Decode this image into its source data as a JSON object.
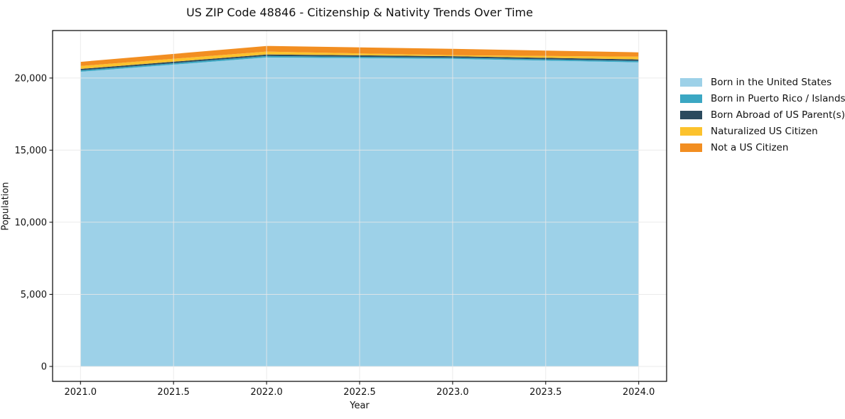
{
  "chart_data": {
    "type": "area",
    "stacked": true,
    "title": "US ZIP Code 48846 - Citizenship & Nativity Trends Over Time",
    "xlabel": "Year",
    "ylabel": "Population",
    "x": [
      2021,
      2022,
      2023,
      2024
    ],
    "series": [
      {
        "name": "Born in the United States",
        "color": "#9dd1e8",
        "values": [
          20440,
          21430,
          21330,
          21090
        ]
      },
      {
        "name": "Born in Puerto Rico / Islands",
        "color": "#3ba7c3",
        "values": [
          95,
          100,
          85,
          95
        ]
      },
      {
        "name": "Born Abroad of US Parent(s)",
        "color": "#2b4a5e",
        "values": [
          100,
          105,
          100,
          105
        ]
      },
      {
        "name": "Naturalized US Citizen",
        "color": "#fcc22d",
        "values": [
          200,
          200,
          70,
          195
        ]
      },
      {
        "name": "Not a US Citizen",
        "color": "#f28e21",
        "values": [
          290,
          390,
          440,
          300
        ]
      }
    ],
    "x_ticks": [
      {
        "v": 2021.0,
        "label": "2021.0"
      },
      {
        "v": 2021.5,
        "label": "2021.5"
      },
      {
        "v": 2022.0,
        "label": "2022.0"
      },
      {
        "v": 2022.5,
        "label": "2022.5"
      },
      {
        "v": 2023.0,
        "label": "2023.0"
      },
      {
        "v": 2023.5,
        "label": "2023.5"
      },
      {
        "v": 2024.0,
        "label": "2024.0"
      }
    ],
    "y_ticks": [
      {
        "v": 0,
        "label": "0"
      },
      {
        "v": 5000,
        "label": "5,000"
      },
      {
        "v": 10000,
        "label": "10,000"
      },
      {
        "v": 15000,
        "label": "15,000"
      },
      {
        "v": 20000,
        "label": "20,000"
      }
    ],
    "xlim": [
      2020.85,
      2024.15
    ],
    "ylim": [
      -1035,
      23295
    ],
    "grid": true,
    "legend_position": "right",
    "background_color": "#ffffff"
  }
}
